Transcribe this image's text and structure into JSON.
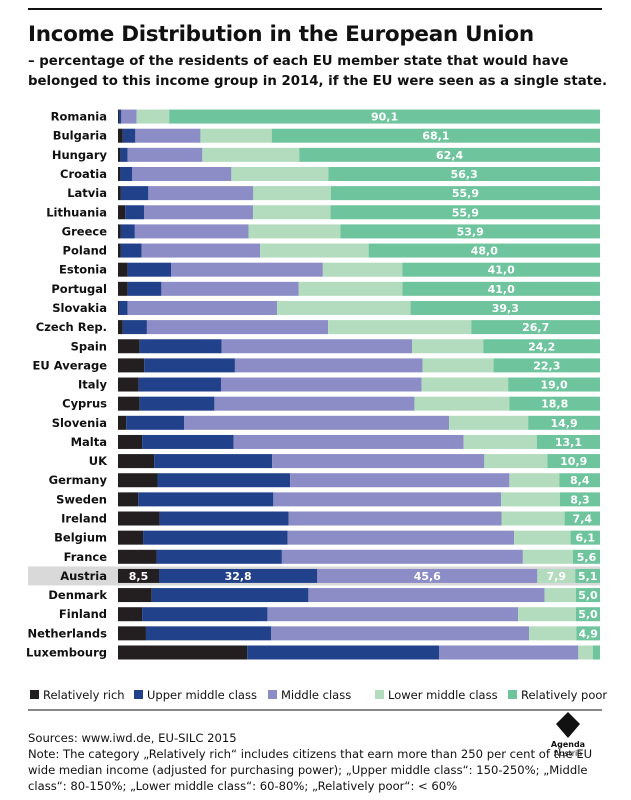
{
  "header": {
    "title": "Income Distribution in the European Union",
    "subtitle": "– percentage of the residents of each EU member state that would have belonged to this income group in 2014, if the EU were seen as a single state."
  },
  "footer": {
    "sources": "Sources: www.iwd.de, EU-SILC 2015",
    "note": "Note: The category „Relatively rich“ includes citizens that earn more than 250 per cent of the EU wide median income (adjusted for purchasing power); „Upper middle class“: 150-250%; „Middle class“: 80-150%; „Lower middle class“: 60-80%; „Relatively poor“: < 60%"
  },
  "logo": {
    "name": "Agenda",
    "sub": "Austria"
  },
  "chart_data": {
    "type": "bar",
    "orientation": "horizontal",
    "stacked": true,
    "unit": "%",
    "xlim": [
      0,
      100
    ],
    "highlight_category": "Austria",
    "legend_position": "bottom",
    "colors": [
      "#231f20",
      "#21418a",
      "#8c8cc6",
      "#b2dcbd",
      "#6ec49d"
    ],
    "highlight_color": "#d9d9d9",
    "categories": [
      "Romania",
      "Bulgaria",
      "Hungary",
      "Croatia",
      "Latvia",
      "Lithuania",
      "Greece",
      "Poland",
      "Estonia",
      "Portugal",
      "Slovakia",
      "Czech Rep.",
      "Spain",
      "EU Average",
      "Italy",
      "Cyprus",
      "Slovenia",
      "Malta",
      "UK",
      "Germany",
      "Sweden",
      "Ireland",
      "Belgium",
      "France",
      "Austria",
      "Denmark",
      "Finland",
      "Netherlands",
      "Luxembourg"
    ],
    "series": [
      {
        "name": "Relatively rich",
        "values": [
          0.2,
          1.0,
          0.5,
          0.5,
          0.6,
          1.5,
          0.6,
          0.6,
          2.0,
          2.0,
          0.2,
          1.0,
          4.5,
          5.5,
          4.3,
          4.5,
          1.7,
          5.0,
          7.5,
          8.2,
          4.2,
          8.7,
          5.2,
          8.0,
          8.5,
          7.0,
          5.0,
          5.8,
          26.8
        ],
        "labels": [
          "",
          "",
          "",
          "",
          "",
          "",
          "",
          "",
          "",
          "",
          "",
          "",
          "",
          "",
          "",
          "",
          "",
          "",
          "",
          "",
          "",
          "",
          "",
          "",
          "8,5",
          "",
          "",
          "",
          ""
        ]
      },
      {
        "name": "Upper middle class",
        "values": [
          0.5,
          2.6,
          1.5,
          2.4,
          5.7,
          3.9,
          2.9,
          4.3,
          9.0,
          7.0,
          1.8,
          5.0,
          17.0,
          19.0,
          17.0,
          15.5,
          12.0,
          19.0,
          24.5,
          27.5,
          28.0,
          27.0,
          30.0,
          26.0,
          32.8,
          32.5,
          26.0,
          26.0,
          39.8
        ],
        "labels": [
          "",
          "",
          "",
          "",
          "",
          "",
          "",
          "",
          "",
          "",
          "",
          "",
          "",
          "",
          "",
          "",
          "",
          "",
          "",
          "",
          "",
          "",
          "",
          "",
          "32,8",
          "",
          "",
          "",
          ""
        ]
      },
      {
        "name": "Middle class",
        "values": [
          3.2,
          13.5,
          15.5,
          20.6,
          21.8,
          22.6,
          23.6,
          24.6,
          31.5,
          28.5,
          31.0,
          37.6,
          39.5,
          39.3,
          41.5,
          41.5,
          55.0,
          47.7,
          44.0,
          45.5,
          47.2,
          44.5,
          47.0,
          50.0,
          45.6,
          49.0,
          52.0,
          53.5,
          28.9
        ],
        "labels": [
          "",
          "",
          "",
          "",
          "",
          "",
          "",
          "",
          "",
          "",
          "",
          "",
          "",
          "",
          "",
          "",
          "",
          "",
          "",
          "",
          "",
          "",
          "",
          "",
          "45,6",
          "",
          "",
          "",
          ""
        ]
      },
      {
        "name": "Lower middle class",
        "values": [
          6.8,
          14.8,
          20.1,
          20.1,
          16.1,
          16.1,
          19.1,
          22.5,
          16.5,
          21.5,
          27.7,
          29.7,
          14.8,
          14.9,
          17.9,
          19.7,
          16.4,
          15.2,
          13.1,
          10.4,
          12.2,
          13.2,
          11.7,
          10.4,
          7.9,
          6.5,
          12.0,
          9.8,
          3.0
        ],
        "labels": [
          "",
          "",
          "",
          "",
          "",
          "",
          "",
          "",
          "",
          "",
          "",
          "",
          "",
          "",
          "",
          "",
          "",
          "",
          "",
          "",
          "",
          "",
          "",
          "",
          "7,9",
          "",
          "",
          "",
          ""
        ]
      },
      {
        "name": "Relatively poor",
        "values": [
          90.1,
          68.1,
          62.4,
          56.3,
          55.9,
          55.9,
          53.9,
          48.0,
          41.0,
          41.0,
          39.3,
          26.7,
          24.2,
          22.3,
          19.0,
          18.8,
          14.9,
          13.1,
          10.9,
          8.4,
          8.3,
          7.4,
          6.1,
          5.6,
          5.1,
          5.0,
          5.0,
          4.9,
          1.5
        ],
        "labels": [
          "90,1",
          "68,1",
          "62,4",
          "56,3",
          "55,9",
          "55,9",
          "53,9",
          "48,0",
          "41,0",
          "41,0",
          "39,3",
          "26,7",
          "24,2",
          "22,3",
          "19,0",
          "18,8",
          "14,9",
          "13,1",
          "10,9",
          "8,4",
          "8,3",
          "7,4",
          "6,1",
          "5,6",
          "5,1",
          "5,0",
          "5,0",
          "4,9",
          ""
        ]
      }
    ]
  }
}
